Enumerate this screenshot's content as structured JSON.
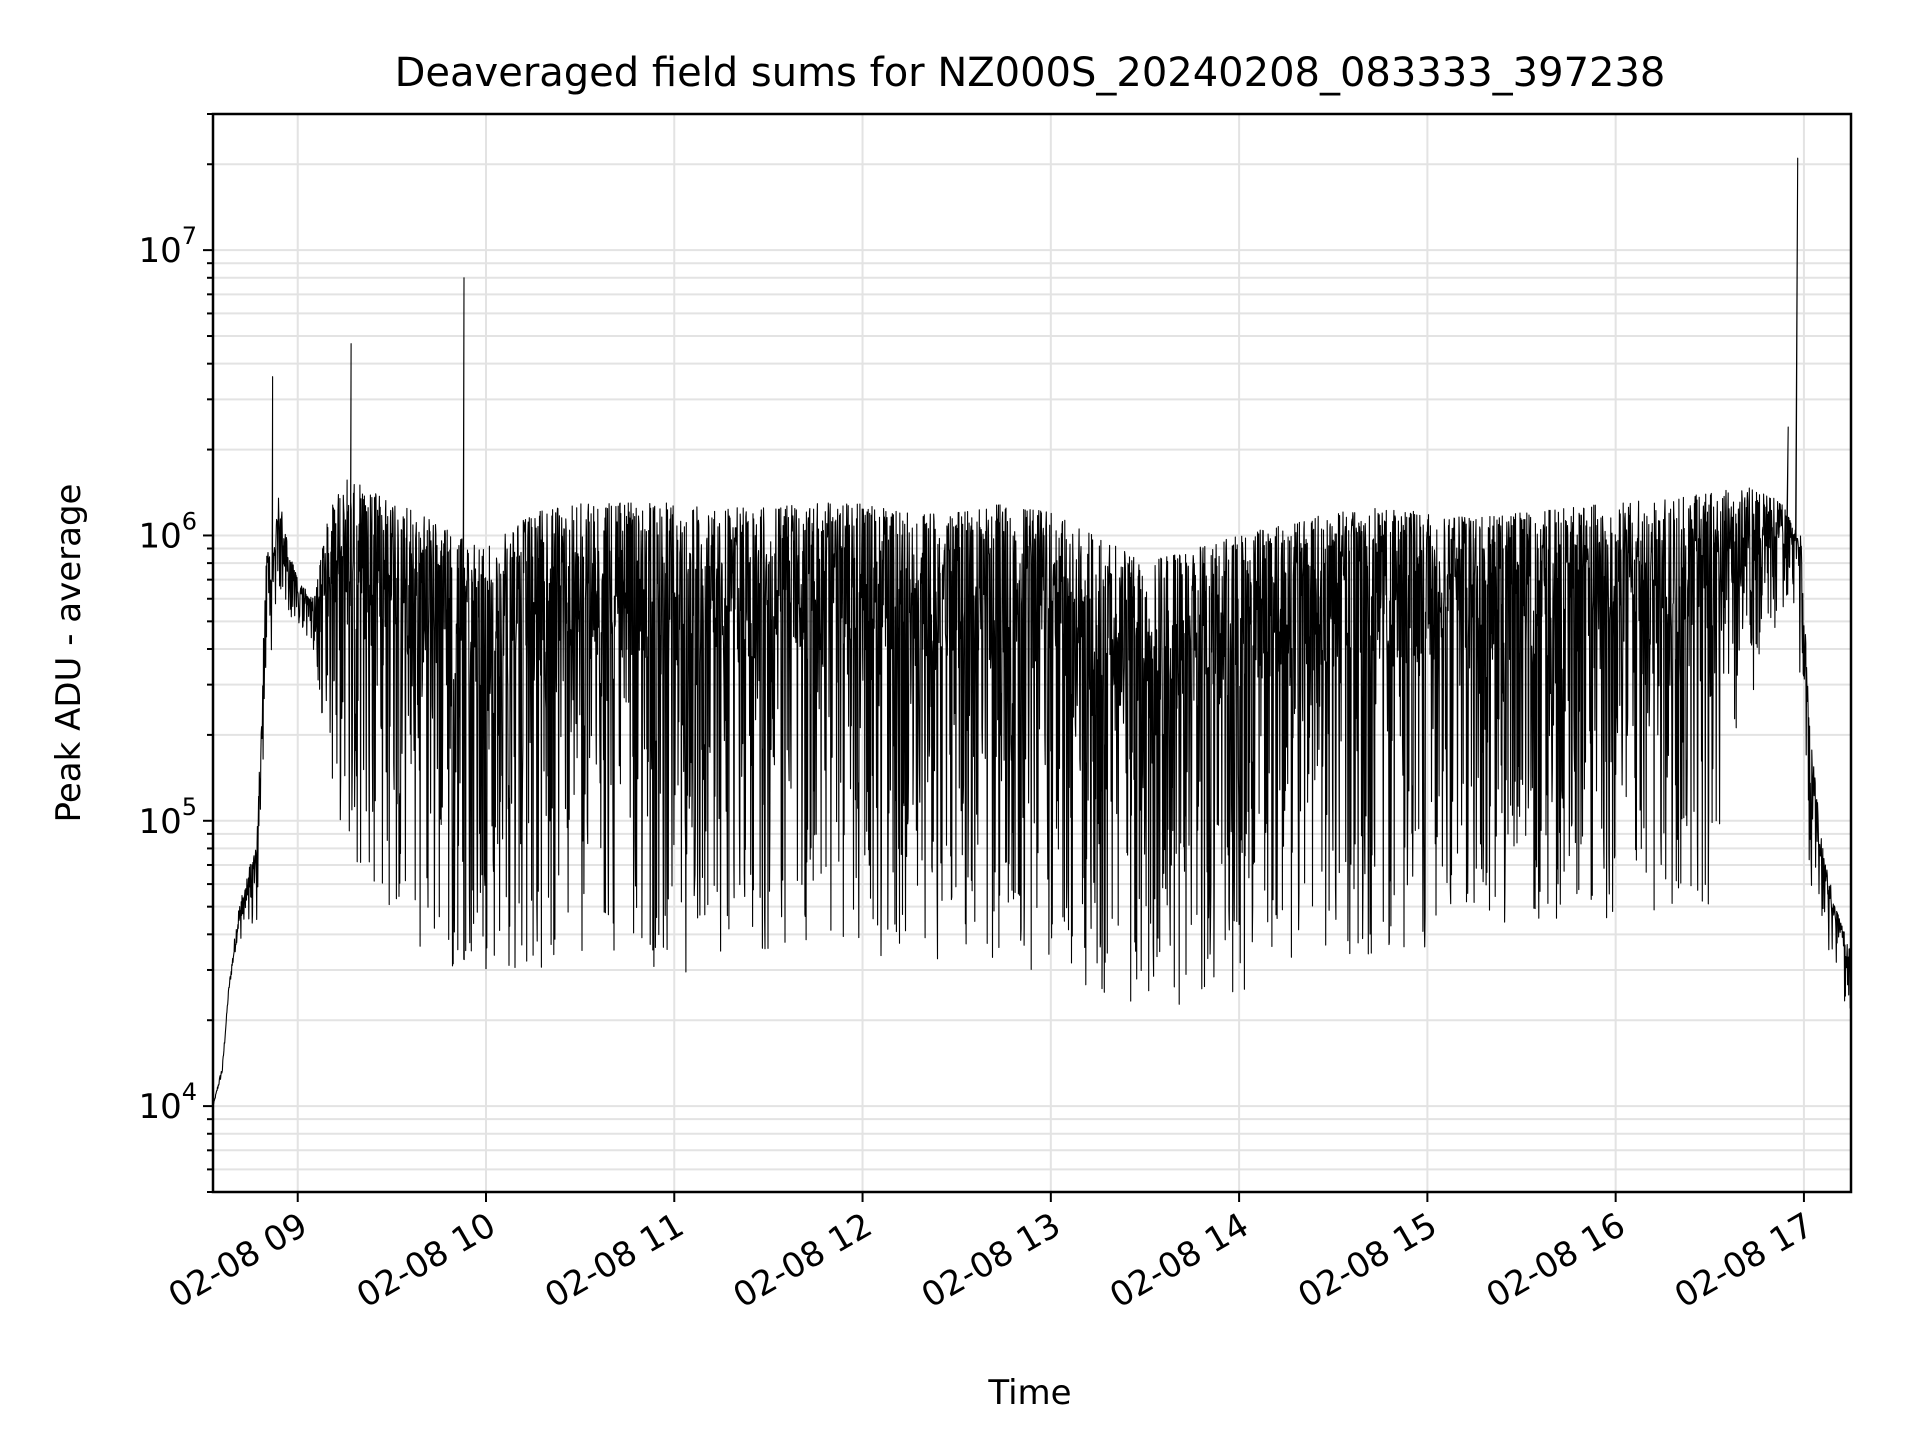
{
  "chart_data": {
    "type": "line",
    "title": "Deaveraged field sums for NZ000S_20240208_083333_397238",
    "xlabel": "Time",
    "ylabel": "Peak ADU - average",
    "yscale": "log",
    "ylim": [
      5000,
      30000000
    ],
    "xlim": [
      "2024-02-08 08:33",
      "2024-02-08 17:15"
    ],
    "grid": true,
    "x_ticks": [
      "02-08 09",
      "02-08 10",
      "02-08 11",
      "02-08 12",
      "02-08 13",
      "02-08 14",
      "02-08 15",
      "02-08 16",
      "02-08 17"
    ],
    "y_ticks": [
      {
        "value": 10000,
        "base": "10",
        "exp": "4"
      },
      {
        "value": 100000,
        "base": "10",
        "exp": "5"
      },
      {
        "value": 1000000,
        "base": "10",
        "exp": "6"
      },
      {
        "value": 10000000,
        "base": "10",
        "exp": "7"
      }
    ],
    "series": [
      {
        "color": "#000000",
        "envelope": {
          "x": [
            "08:33",
            "08:36",
            "08:38",
            "08:41",
            "08:44",
            "08:47",
            "08:50",
            "08:52",
            "08:54",
            "08:57",
            "09:00",
            "09:05",
            "09:10",
            "09:15",
            "09:20",
            "09:30",
            "09:40",
            "09:50",
            "10:00",
            "10:15",
            "10:30",
            "10:45",
            "11:00",
            "11:15",
            "11:30",
            "11:45",
            "12:00",
            "12:15",
            "12:30",
            "12:45",
            "13:00",
            "13:15",
            "13:30",
            "13:45",
            "14:00",
            "14:15",
            "14:30",
            "14:45",
            "15:00",
            "15:15",
            "15:30",
            "15:45",
            "16:00",
            "16:15",
            "16:30",
            "16:40",
            "16:48",
            "16:53",
            "16:56",
            "16:59",
            "17:02",
            "17:06",
            "17:10",
            "17:15"
          ],
          "upper": [
            10000,
            14000,
            26000,
            50000,
            65000,
            85000,
            900000,
            800000,
            1400000,
            900000,
            700000,
            600000,
            1200000,
            1600000,
            1500000,
            1300000,
            1200000,
            1000000,
            900000,
            1200000,
            1300000,
            1300000,
            1300000,
            1250000,
            1250000,
            1300000,
            1300000,
            1200000,
            1200000,
            1300000,
            1200000,
            1000000,
            800000,
            900000,
            1000000,
            1100000,
            1200000,
            1250000,
            1200000,
            1150000,
            1200000,
            1250000,
            1300000,
            1350000,
            1400000,
            1500000,
            1400000,
            1300000,
            1100000,
            1000000,
            200000,
            80000,
            50000,
            35000
          ],
          "lower": [
            10000,
            13000,
            25000,
            40000,
            35000,
            45000,
            250000,
            400000,
            600000,
            500000,
            500000,
            400000,
            150000,
            80000,
            60000,
            45000,
            35000,
            30000,
            30000,
            30000,
            32000,
            30000,
            28000,
            32000,
            35000,
            35000,
            33000,
            32000,
            33000,
            30000,
            28000,
            25000,
            22000,
            22000,
            25000,
            30000,
            33000,
            32000,
            33000,
            34000,
            38000,
            40000,
            42000,
            45000,
            50000,
            200000,
            400000,
            500000,
            700000,
            300000,
            60000,
            40000,
            30000,
            19000
          ]
        },
        "peaks": [
          {
            "x": "08:52",
            "y": 3600000
          },
          {
            "x": "09:17",
            "y": 4700000
          },
          {
            "x": "09:53",
            "y": 8000000
          },
          {
            "x": "16:55",
            "y": 2400000
          },
          {
            "x": "16:58",
            "y": 21000000
          }
        ]
      }
    ]
  }
}
